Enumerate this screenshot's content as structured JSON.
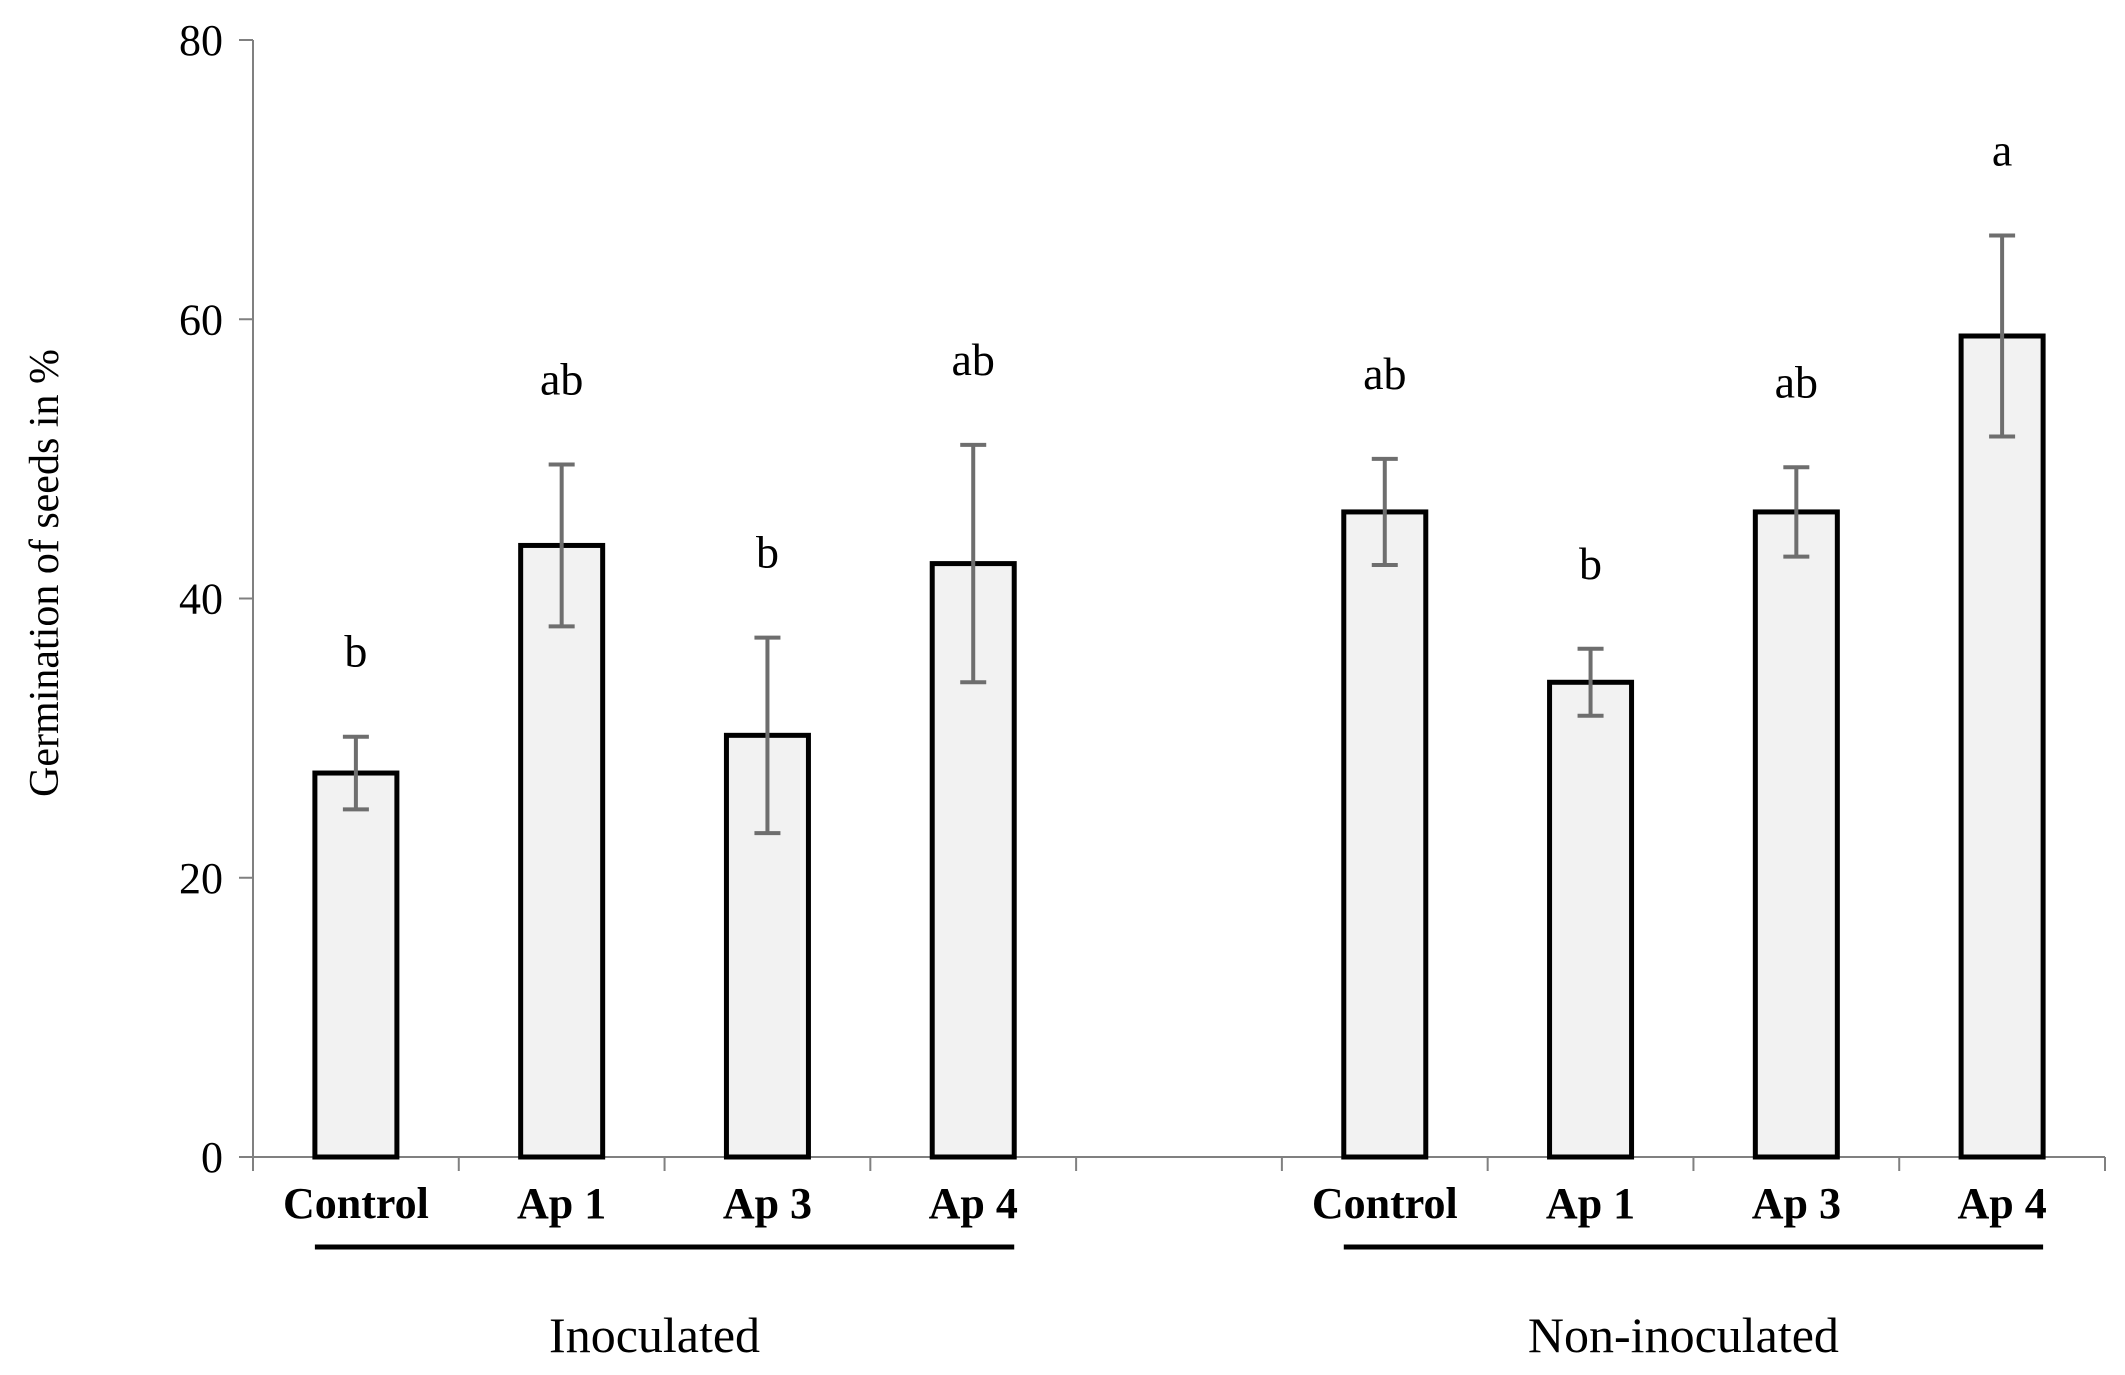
{
  "chart_data": {
    "type": "bar",
    "title": "",
    "xlabel": "",
    "ylabel": "Germination of seeds in %",
    "ylim": [
      0,
      80
    ],
    "yticks": [
      0,
      20,
      40,
      60,
      80
    ],
    "grid": false,
    "groups": [
      {
        "name": "Inoculated",
        "bars": [
          {
            "category": "Control",
            "value": 27.5,
            "error": 2.6,
            "significance": "b"
          },
          {
            "category": "Ap 1",
            "value": 43.8,
            "error": 5.8,
            "significance": "ab"
          },
          {
            "category": "Ap 3",
            "value": 30.2,
            "error": 7.0,
            "significance": "b"
          },
          {
            "category": "Ap 4",
            "value": 42.5,
            "error": 8.5,
            "significance": "ab"
          }
        ]
      },
      {
        "name": "Non-inoculated",
        "bars": [
          {
            "category": "Control",
            "value": 46.2,
            "error": 3.8,
            "significance": "ab"
          },
          {
            "category": "Ap 1",
            "value": 34.0,
            "error": 2.4,
            "significance": "b"
          },
          {
            "category": "Ap 3",
            "value": 46.2,
            "error": 3.2,
            "significance": "ab"
          },
          {
            "category": "Ap 4",
            "value": 58.8,
            "error": 7.2,
            "significance": "a"
          }
        ]
      }
    ]
  }
}
